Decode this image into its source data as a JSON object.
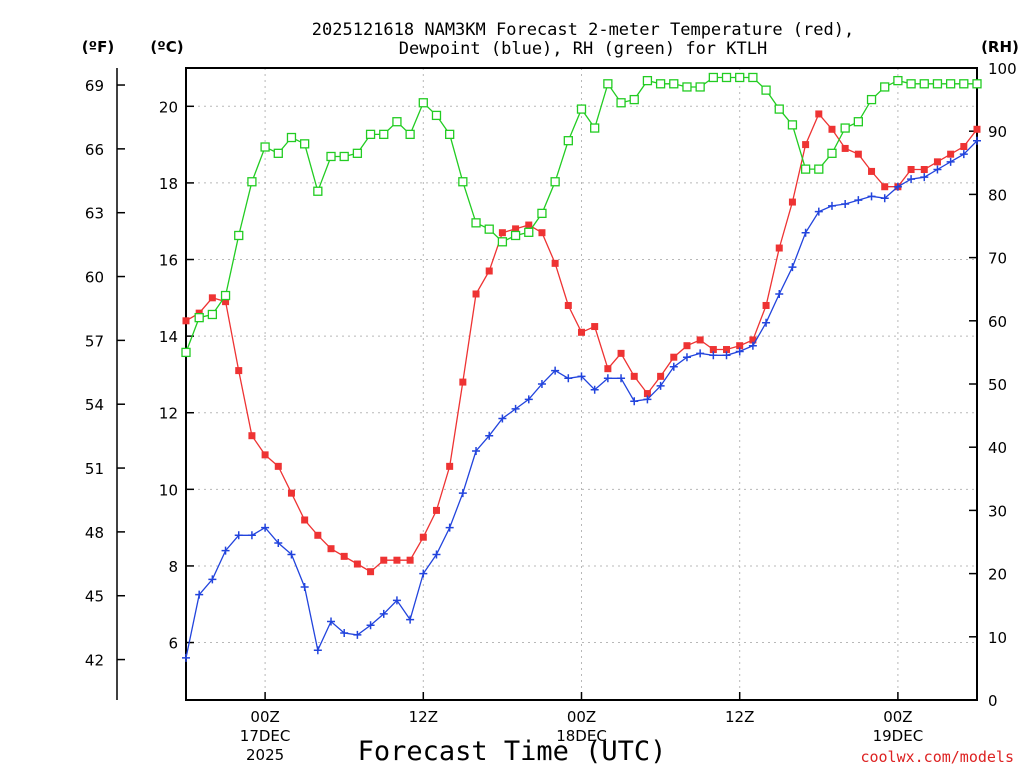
{
  "title": {
    "line1": "2025121618 NAM3KM Forecast 2-meter Temperature (red),",
    "line2": "Dewpoint (blue), RH (green) for KTLH"
  },
  "units": {
    "fahrenheit": "(ºF)",
    "celsius": "(ºC)",
    "rh": "(RH)"
  },
  "x_axis": {
    "title": "Forecast Time (UTC)",
    "ticks": [
      {
        "hour": 6,
        "label": "00Z",
        "day": "17DEC",
        "year": "2025"
      },
      {
        "hour": 18,
        "label": "12Z",
        "day": "",
        "year": ""
      },
      {
        "hour": 30,
        "label": "00Z",
        "day": "18DEC",
        "year": ""
      },
      {
        "hour": 42,
        "label": "12Z",
        "day": "",
        "year": ""
      },
      {
        "hour": 54,
        "label": "00Z",
        "day": "19DEC",
        "year": ""
      }
    ]
  },
  "credit": "coolwx.com/models",
  "colors": {
    "temperature": "#ee3333",
    "dewpoint": "#2244dd",
    "rh": "#22cc22",
    "credit": "#dd2222"
  },
  "chart_data": {
    "type": "line",
    "x_unit": "forecast hours from 2025-12-16 18Z",
    "xlim": [
      0,
      60
    ],
    "ylim_celsius": [
      4.5,
      21
    ],
    "ylim_rh": [
      0,
      100
    ],
    "fahrenheit_ticks": [
      42,
      45,
      48,
      51,
      54,
      57,
      60,
      63,
      66,
      69
    ],
    "celsius_ticks": [
      6,
      8,
      10,
      12,
      14,
      16,
      18,
      20
    ],
    "rh_ticks": [
      0,
      10,
      20,
      30,
      40,
      50,
      60,
      70,
      80,
      90,
      100
    ],
    "series": [
      {
        "name": "Temperature",
        "axis": "celsius",
        "marker": "filled-square",
        "x": [
          0,
          1,
          2,
          3,
          4,
          5,
          6,
          7,
          8,
          9,
          10,
          11,
          12,
          13,
          14,
          15,
          16,
          17,
          18,
          19,
          20,
          21,
          22,
          23,
          24,
          25,
          26,
          27,
          28,
          29,
          30,
          31,
          32,
          33,
          34,
          35,
          36,
          37,
          38,
          39,
          40,
          41,
          42,
          43,
          44,
          45,
          46,
          47,
          48,
          49,
          50,
          51,
          52,
          53,
          54,
          55,
          56,
          57,
          58,
          59,
          60
        ],
        "values": [
          14.4,
          14.6,
          15.0,
          14.9,
          13.1,
          11.4,
          10.9,
          10.6,
          9.9,
          9.2,
          8.8,
          8.45,
          8.25,
          8.05,
          7.85,
          8.15,
          8.15,
          8.15,
          8.75,
          9.45,
          10.6,
          12.8,
          15.1,
          15.7,
          16.7,
          16.8,
          16.9,
          16.7,
          15.9,
          14.8,
          14.1,
          14.25,
          13.15,
          13.55,
          12.95,
          12.5,
          12.95,
          13.45,
          13.75,
          13.9,
          13.65,
          13.65,
          13.75,
          13.9,
          14.8,
          16.3,
          17.5,
          19.0,
          19.8,
          19.4,
          18.9,
          18.75,
          18.3,
          17.9,
          17.9,
          18.35,
          18.35,
          18.55,
          18.75,
          18.95,
          19.4
        ]
      },
      {
        "name": "Dewpoint",
        "axis": "celsius",
        "marker": "plus",
        "x": [
          0,
          1,
          2,
          3,
          4,
          5,
          6,
          7,
          8,
          9,
          10,
          11,
          12,
          13,
          14,
          15,
          16,
          17,
          18,
          19,
          20,
          21,
          22,
          23,
          24,
          25,
          26,
          27,
          28,
          29,
          30,
          31,
          32,
          33,
          34,
          35,
          36,
          37,
          38,
          39,
          40,
          41,
          42,
          43,
          44,
          45,
          46,
          47,
          48,
          49,
          50,
          51,
          52,
          53,
          54,
          55,
          56,
          57,
          58,
          59,
          60
        ],
        "values": [
          5.6,
          7.25,
          7.65,
          8.4,
          8.8,
          8.8,
          9.0,
          8.6,
          8.3,
          7.45,
          5.8,
          6.55,
          6.25,
          6.2,
          6.45,
          6.75,
          7.1,
          6.6,
          7.8,
          8.3,
          9.0,
          9.9,
          11.0,
          11.4,
          11.85,
          12.1,
          12.35,
          12.75,
          13.1,
          12.9,
          12.95,
          12.6,
          12.9,
          12.9,
          12.3,
          12.35,
          12.7,
          13.2,
          13.45,
          13.55,
          13.5,
          13.5,
          13.6,
          13.75,
          14.35,
          15.1,
          15.8,
          16.7,
          17.25,
          17.4,
          17.45,
          17.55,
          17.65,
          17.6,
          17.9,
          18.1,
          18.15,
          18.35,
          18.55,
          18.75,
          19.1
        ]
      },
      {
        "name": "RH",
        "axis": "rh",
        "marker": "open-square",
        "x": [
          0,
          1,
          2,
          3,
          4,
          5,
          6,
          7,
          8,
          9,
          10,
          11,
          12,
          13,
          14,
          15,
          16,
          17,
          18,
          19,
          20,
          21,
          22,
          23,
          24,
          25,
          26,
          27,
          28,
          29,
          30,
          31,
          32,
          33,
          34,
          35,
          36,
          37,
          38,
          39,
          40,
          41,
          42,
          43,
          44,
          45,
          46,
          47,
          48,
          49,
          50,
          51,
          52,
          53,
          54,
          55,
          56,
          57,
          58,
          59,
          60
        ],
        "values": [
          55,
          60.5,
          61,
          64,
          73.5,
          82,
          87.5,
          86.5,
          89,
          88,
          80.5,
          86,
          86,
          86.5,
          89.5,
          89.5,
          91.5,
          89.5,
          94.5,
          92.5,
          89.5,
          82,
          75.5,
          74.5,
          72.5,
          73.5,
          74,
          77,
          82,
          88.5,
          93.5,
          90.5,
          97.5,
          94.5,
          95,
          98,
          97.5,
          97.5,
          97,
          97,
          98.5,
          98.5,
          98.5,
          98.5,
          96.5,
          93.5,
          91,
          84,
          84,
          86.5,
          90.5,
          91.5,
          95,
          97,
          98,
          97.5,
          97.5,
          97.5,
          97.5,
          97.5,
          97.5
        ]
      }
    ]
  }
}
